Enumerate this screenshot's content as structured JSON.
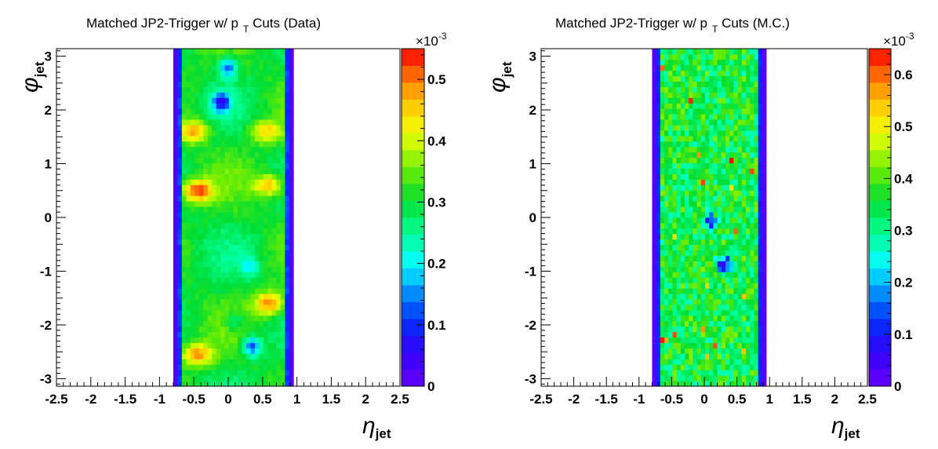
{
  "chart_data": [
    {
      "type": "heatmap",
      "title_main": "Matched JP2-Trigger w/ p",
      "title_sub": "T",
      "title_tail": " Cuts (Data)",
      "xlabel_main": "η",
      "xlabel_sub": "jet",
      "ylabel_main": "φ",
      "ylabel_sub": "jet",
      "xlim": [
        -2.5,
        2.5
      ],
      "ylim": [
        -3.14,
        3.14
      ],
      "x_ticks": [
        -2.5,
        -2,
        -1.5,
        -1,
        -0.5,
        0,
        0.5,
        1,
        1.5,
        2,
        2.5
      ],
      "x_tick_labels": [
        "-2.5",
        "-2",
        "-1.5",
        "-1",
        "-0.5",
        "0",
        "0.5",
        "1",
        "1.5",
        "2",
        "2.5"
      ],
      "y_ticks": [
        -3,
        -2,
        -1,
        0,
        1,
        2,
        3
      ],
      "y_tick_labels": [
        "-3",
        "-2",
        "-1",
        "0",
        "1",
        "2",
        "3"
      ],
      "data_range_x": [
        -0.8,
        0.95
      ],
      "zlim": [
        0,
        0.00055
      ],
      "z_ticks": [
        0,
        0.1,
        0.2,
        0.3,
        0.4,
        0.5
      ],
      "z_tick_labels": [
        "0",
        "0.1",
        "0.2",
        "0.3",
        "0.4",
        "0.5"
      ],
      "z_exponent": "×10",
      "z_exponent_power": "-3",
      "hot_spots": [
        {
          "x": -0.45,
          "y": 0.5,
          "z": 0.00052
        },
        {
          "x": 0.6,
          "y": -1.6,
          "z": 0.0005
        },
        {
          "x": -0.45,
          "y": -2.55,
          "z": 0.00048
        },
        {
          "x": -0.5,
          "y": 1.6,
          "z": 0.00047
        },
        {
          "x": 0.6,
          "y": 0.6,
          "z": 0.00046
        },
        {
          "x": 0.55,
          "y": 1.6,
          "z": 0.00044
        }
      ],
      "cold_spots": [
        {
          "x": -0.1,
          "y": 2.15,
          "z": 9e-05
        },
        {
          "x": 0.0,
          "y": 2.8,
          "z": 0.00012
        },
        {
          "x": 0.35,
          "y": -2.4,
          "z": 0.0001
        },
        {
          "x": 0.3,
          "y": -0.9,
          "z": 0.0002
        },
        {
          "x": 0.1,
          "y": -1.95,
          "z": 0.00022
        }
      ]
    },
    {
      "type": "heatmap",
      "title_main": "Matched JP2-Trigger w/ p",
      "title_sub": "T",
      "title_tail": " Cuts (M.C.)",
      "xlabel_main": "η",
      "xlabel_sub": "jet",
      "ylabel_main": "φ",
      "ylabel_sub": "jet",
      "xlim": [
        -2.5,
        2.5
      ],
      "ylim": [
        -3.14,
        3.14
      ],
      "x_ticks": [
        -2.5,
        -2,
        -1.5,
        -1,
        -0.5,
        0,
        0.5,
        1,
        1.5,
        2,
        2.5
      ],
      "x_tick_labels": [
        "-2.5",
        "-2",
        "-1.5",
        "-1",
        "-0.5",
        "0",
        "0.5",
        "1",
        "1.5",
        "2",
        "2.5"
      ],
      "y_ticks": [
        -3,
        -2,
        -1,
        0,
        1,
        2,
        3
      ],
      "y_tick_labels": [
        "-3",
        "-2",
        "-1",
        "0",
        "1",
        "2",
        "3"
      ],
      "data_range_x": [
        -0.8,
        0.95
      ],
      "zlim": [
        0,
        0.00065
      ],
      "z_ticks": [
        0,
        0.1,
        0.2,
        0.3,
        0.4,
        0.5,
        0.6
      ],
      "z_tick_labels": [
        "0",
        "0.1",
        "0.2",
        "0.3",
        "0.4",
        "0.5",
        "0.6"
      ],
      "z_exponent": "×10",
      "z_exponent_power": "-3",
      "mean_level": 0.00035,
      "cold_spots": [
        {
          "x": 0.1,
          "y": -0.05,
          "z": 0.0001
        },
        {
          "x": 0.3,
          "y": -0.85,
          "z": 8e-05
        }
      ]
    }
  ]
}
